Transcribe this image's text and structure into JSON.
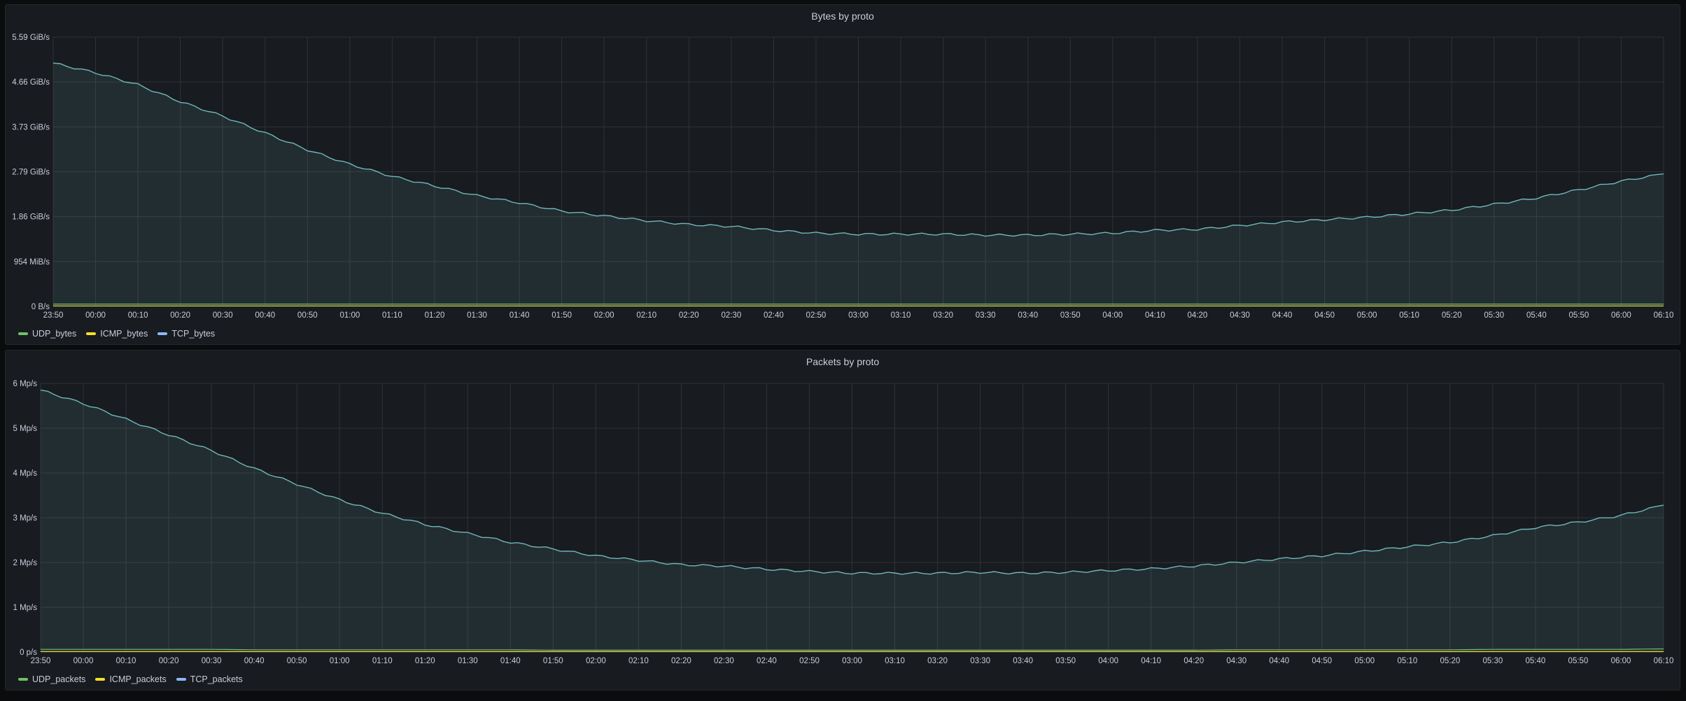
{
  "colors": {
    "udp": "#73bf69",
    "icmp": "#fade2a",
    "tcp": "#8ab8ff",
    "tcp_line": "#6fb7b9",
    "grid": "#2f3237",
    "panel": "#181b1f"
  },
  "chart_data": [
    {
      "type": "area",
      "title": "Bytes by proto",
      "y_ticks": [
        "0 B/s",
        "954 MiB/s",
        "1.86 GiB/s",
        "2.79 GiB/s",
        "3.73 GiB/s",
        "4.66 GiB/s",
        "5.59 GiB/s"
      ],
      "ylim": [
        0,
        5.59
      ],
      "y_unit": "GiB/s",
      "x": [
        "23:50",
        "00:00",
        "00:10",
        "00:20",
        "00:30",
        "00:40",
        "00:50",
        "01:00",
        "01:10",
        "01:20",
        "01:30",
        "01:40",
        "01:50",
        "02:00",
        "02:10",
        "02:20",
        "02:30",
        "02:40",
        "02:50",
        "03:00",
        "03:10",
        "03:20",
        "03:30",
        "03:40",
        "03:50",
        "04:00",
        "04:10",
        "04:20",
        "04:30",
        "04:40",
        "04:50",
        "05:00",
        "05:10",
        "05:20",
        "05:30",
        "05:40",
        "05:50",
        "06:00",
        "06:10"
      ],
      "legend": "bottom-left",
      "grid": true,
      "series": [
        {
          "name": "UDP_bytes",
          "color_key": "udp",
          "values": [
            0.05,
            0.05,
            0.05,
            0.05,
            0.05,
            0.05,
            0.05,
            0.05,
            0.05,
            0.05,
            0.05,
            0.05,
            0.05,
            0.05,
            0.05,
            0.05,
            0.05,
            0.05,
            0.05,
            0.05,
            0.05,
            0.05,
            0.05,
            0.05,
            0.05,
            0.05,
            0.05,
            0.05,
            0.05,
            0.05,
            0.05,
            0.05,
            0.05,
            0.05,
            0.05,
            0.05,
            0.05,
            0.05,
            0.05
          ]
        },
        {
          "name": "ICMP_bytes",
          "color_key": "icmp",
          "values": [
            0.01,
            0.01,
            0.01,
            0.01,
            0.01,
            0.01,
            0.01,
            0.01,
            0.01,
            0.01,
            0.01,
            0.01,
            0.01,
            0.01,
            0.01,
            0.01,
            0.01,
            0.01,
            0.01,
            0.01,
            0.01,
            0.01,
            0.01,
            0.01,
            0.01,
            0.01,
            0.01,
            0.01,
            0.01,
            0.01,
            0.01,
            0.01,
            0.01,
            0.01,
            0.01,
            0.01,
            0.01,
            0.01,
            0.01
          ]
        },
        {
          "name": "TCP_bytes",
          "color_key": "tcp",
          "values": [
            5.05,
            4.85,
            4.6,
            4.25,
            3.95,
            3.6,
            3.25,
            2.95,
            2.7,
            2.5,
            2.3,
            2.15,
            1.98,
            1.88,
            1.78,
            1.7,
            1.66,
            1.58,
            1.52,
            1.5,
            1.5,
            1.5,
            1.48,
            1.48,
            1.5,
            1.52,
            1.58,
            1.6,
            1.68,
            1.75,
            1.8,
            1.85,
            1.92,
            2.0,
            2.12,
            2.25,
            2.42,
            2.6,
            2.75
          ]
        }
      ]
    },
    {
      "type": "area",
      "title": "Packets by proto",
      "y_ticks": [
        "0 p/s",
        "1 Mp/s",
        "2 Mp/s",
        "3 Mp/s",
        "4 Mp/s",
        "5 Mp/s",
        "6 Mp/s"
      ],
      "ylim": [
        0,
        6
      ],
      "y_unit": "Mp/s",
      "x": [
        "23:50",
        "00:00",
        "00:10",
        "00:20",
        "00:30",
        "00:40",
        "00:50",
        "01:00",
        "01:10",
        "01:20",
        "01:30",
        "01:40",
        "01:50",
        "02:00",
        "02:10",
        "02:20",
        "02:30",
        "02:40",
        "02:50",
        "03:00",
        "03:10",
        "03:20",
        "03:30",
        "03:40",
        "03:50",
        "04:00",
        "04:10",
        "04:20",
        "04:30",
        "04:40",
        "04:50",
        "05:00",
        "05:10",
        "05:20",
        "05:30",
        "05:40",
        "05:50",
        "06:00",
        "06:10"
      ],
      "legend": "bottom-left",
      "grid": true,
      "series": [
        {
          "name": "UDP_packets",
          "color_key": "udp",
          "values": [
            0.06,
            0.06,
            0.06,
            0.06,
            0.06,
            0.05,
            0.05,
            0.05,
            0.05,
            0.05,
            0.05,
            0.05,
            0.04,
            0.04,
            0.04,
            0.04,
            0.04,
            0.04,
            0.04,
            0.04,
            0.04,
            0.04,
            0.04,
            0.04,
            0.04,
            0.04,
            0.04,
            0.04,
            0.05,
            0.05,
            0.05,
            0.05,
            0.05,
            0.05,
            0.06,
            0.06,
            0.06,
            0.06,
            0.07
          ]
        },
        {
          "name": "ICMP_packets",
          "color_key": "icmp",
          "values": [
            0.01,
            0.01,
            0.01,
            0.01,
            0.01,
            0.01,
            0.01,
            0.01,
            0.01,
            0.01,
            0.01,
            0.01,
            0.01,
            0.01,
            0.01,
            0.01,
            0.01,
            0.01,
            0.01,
            0.01,
            0.01,
            0.01,
            0.01,
            0.01,
            0.01,
            0.01,
            0.01,
            0.01,
            0.01,
            0.01,
            0.01,
            0.01,
            0.01,
            0.01,
            0.01,
            0.01,
            0.01,
            0.01,
            0.01
          ]
        },
        {
          "name": "TCP_packets",
          "color_key": "tcp",
          "values": [
            5.85,
            5.55,
            5.2,
            4.85,
            4.5,
            4.1,
            3.75,
            3.4,
            3.1,
            2.85,
            2.65,
            2.45,
            2.3,
            2.15,
            2.05,
            1.95,
            1.92,
            1.85,
            1.8,
            1.76,
            1.76,
            1.76,
            1.78,
            1.76,
            1.78,
            1.82,
            1.86,
            1.92,
            2.0,
            2.08,
            2.15,
            2.25,
            2.35,
            2.45,
            2.6,
            2.78,
            2.9,
            3.05,
            3.28
          ]
        }
      ]
    }
  ]
}
